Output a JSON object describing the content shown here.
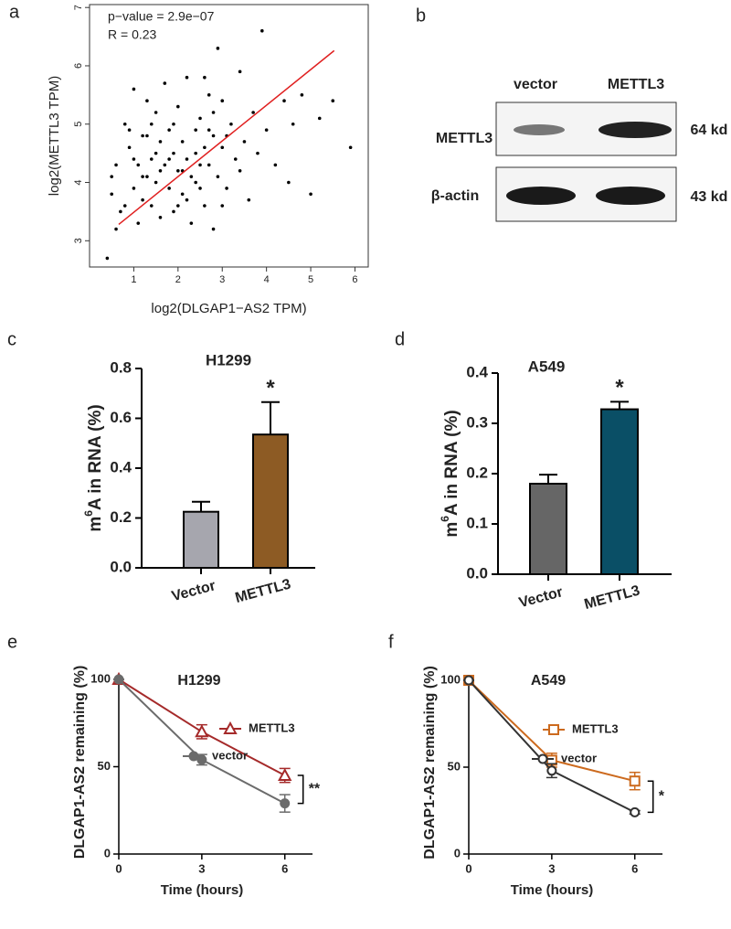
{
  "chart_data": [
    {
      "type": "scatter",
      "panel": "a",
      "xlabel": "log2(DLGAP1−AS2 TPM)",
      "ylabel": "log2(METTL3 TPM)",
      "annotations": [
        "p−value = 2.9e−07",
        "R = 0.23"
      ],
      "x": [
        0.4,
        0.5,
        0.6,
        0.7,
        0.8,
        0.9,
        1.0,
        1.0,
        1.1,
        1.1,
        1.2,
        1.2,
        1.3,
        1.3,
        1.4,
        1.4,
        1.5,
        1.5,
        1.6,
        1.6,
        1.7,
        1.7,
        1.8,
        1.8,
        1.9,
        1.9,
        2.0,
        2.0,
        2.1,
        2.1,
        2.2,
        2.2,
        2.3,
        2.3,
        2.4,
        2.4,
        2.5,
        2.5,
        2.6,
        2.6,
        2.7,
        2.7,
        2.8,
        2.8,
        2.9,
        2.9,
        3.0,
        3.0,
        3.1,
        3.2,
        3.3,
        3.4,
        3.5,
        3.6,
        3.7,
        3.8,
        3.9,
        4.0,
        4.2,
        4.4,
        4.5,
        4.6,
        4.8,
        5.0,
        5.2,
        5.5,
        5.9,
        0.5,
        0.8,
        1.0,
        1.3,
        1.6,
        1.9,
        2.2,
        2.5,
        2.8,
        3.1,
        3.4,
        1.2,
        1.5,
        1.8,
        2.1,
        2.4,
        2.7,
        3.0,
        0.6,
        0.9,
        1.4,
        2.0,
        2.6
      ],
      "y": [
        2.7,
        3.8,
        4.3,
        3.5,
        5.0,
        4.6,
        3.9,
        5.6,
        4.3,
        3.3,
        4.8,
        3.7,
        4.1,
        5.4,
        4.4,
        3.6,
        4.0,
        5.2,
        4.7,
        3.4,
        4.3,
        5.7,
        3.9,
        4.9,
        4.5,
        3.5,
        4.2,
        5.3,
        3.8,
        4.7,
        4.4,
        5.8,
        4.1,
        3.3,
        4.9,
        4.5,
        3.9,
        5.1,
        4.6,
        3.6,
        5.5,
        4.3,
        4.8,
        3.2,
        6.3,
        4.1,
        4.6,
        5.4,
        3.9,
        5.0,
        4.4,
        5.9,
        4.7,
        3.7,
        5.2,
        4.5,
        6.6,
        4.9,
        4.3,
        5.4,
        4.0,
        5.0,
        5.5,
        3.8,
        5.1,
        5.4,
        4.6,
        4.1,
        3.6,
        4.4,
        4.8,
        4.2,
        5.0,
        3.7,
        4.3,
        5.2,
        4.8,
        4.2,
        4.1,
        4.5,
        4.4,
        4.2,
        4.0,
        4.9,
        3.6,
        3.2,
        4.9,
        5.0,
        3.6,
        5.8
      ],
      "color": "#000000",
      "fit": {
        "x": [
          0.66,
          5.53
        ],
        "y": [
          3.28,
          6.26
        ],
        "color": "#e02020"
      },
      "xlim": [
        0,
        6.3
      ],
      "ylim": [
        2.55,
        7.05
      ],
      "xticks": [
        1,
        2,
        3,
        4,
        5,
        6
      ],
      "yticks": [
        3,
        4,
        5,
        6,
        7
      ]
    },
    {
      "type": "bar",
      "panel": "c",
      "title": "H1299",
      "ylabel": [
        "m",
        "6",
        "A in RNA (%)"
      ],
      "categories": [
        "Vector",
        "METTL3"
      ],
      "values": [
        0.225,
        0.535
      ],
      "errors": [
        0.04,
        0.13
      ],
      "colors": [
        "#a6a6ae",
        "#8d5b24"
      ],
      "significance": "*",
      "ylim": [
        0,
        0.8
      ],
      "yticks": [
        {
          "value": 0,
          "label": "0.0"
        },
        0.2,
        0.4,
        0.6,
        0.8
      ]
    },
    {
      "type": "bar",
      "panel": "d",
      "title": "A549",
      "ylabel": [
        "m",
        "6",
        "A in RNA (%)"
      ],
      "categories": [
        "Vector",
        "METTL3"
      ],
      "values": [
        0.18,
        0.328
      ],
      "errors": [
        0.018,
        0.015
      ],
      "colors": [
        "#666666",
        "#0a4f66"
      ],
      "significance": "*",
      "ylim": [
        0,
        0.4
      ],
      "yticks": [
        {
          "value": 0,
          "label": "0.0"
        },
        0.1,
        0.2,
        0.3,
        0.4
      ]
    },
    {
      "type": "line",
      "panel": "e",
      "title": "H1299",
      "xlabel": "Time (hours)",
      "ylabel": "DLGAP1-AS2 remaining (%)",
      "x": [
        0,
        3,
        6
      ],
      "series": [
        {
          "name": "METTL3",
          "color": "#a52a2a",
          "marker": "triangle",
          "filled": false,
          "values": [
            100,
            70,
            45
          ],
          "errors": [
            0,
            4,
            4
          ]
        },
        {
          "name": "vector",
          "color": "#6b6b6b",
          "marker": "circle",
          "filled": true,
          "values": [
            100,
            54,
            29
          ],
          "errors": [
            0,
            3,
            5
          ]
        }
      ],
      "significance": "**",
      "xlim": [
        0,
        7
      ],
      "ylim": [
        0,
        100
      ],
      "xticks": [
        0,
        3,
        6
      ],
      "yticks": [
        0,
        50,
        100
      ]
    },
    {
      "type": "line",
      "panel": "f",
      "title": "A549",
      "xlabel": "Time (hours)",
      "ylabel": "DLGAP1-AS2 remaining (%)",
      "x": [
        0,
        3,
        6
      ],
      "series": [
        {
          "name": "METTL3",
          "color": "#cc6a1e",
          "marker": "square",
          "filled": false,
          "values": [
            100,
            54,
            42
          ],
          "errors": [
            0,
            4,
            5
          ]
        },
        {
          "name": "vector",
          "color": "#333333",
          "marker": "circle",
          "filled": false,
          "values": [
            100,
            48,
            24
          ],
          "errors": [
            0,
            4,
            1
          ]
        }
      ],
      "significance": "*",
      "xlim": [
        0,
        7
      ],
      "ylim": [
        0,
        100
      ],
      "xticks": [
        0,
        3,
        6
      ],
      "yticks": [
        0,
        50,
        100
      ]
    }
  ],
  "blot": {
    "panel": "b",
    "lanes": [
      "vector",
      "METTL3"
    ],
    "rows": [
      {
        "protein": "METTL3",
        "size": "64 kd"
      },
      {
        "protein": "β-actin",
        "size": "43 kd"
      }
    ]
  }
}
